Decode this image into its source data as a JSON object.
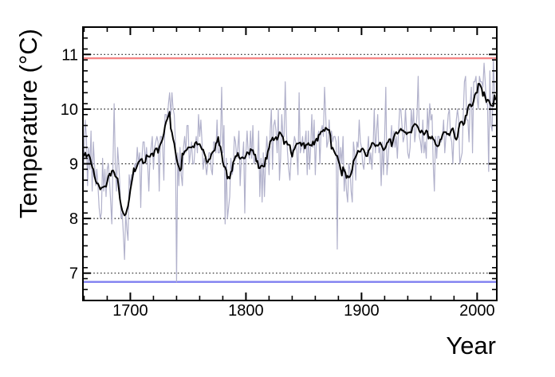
{
  "chart_data": {
    "type": "line",
    "title": "",
    "xlabel": "Year",
    "ylabel": "Temperature (°C)",
    "xlim": [
      1659,
      2017
    ],
    "ylim": [
      6.5,
      11.5
    ],
    "x_major_ticks": [
      1700,
      1800,
      1900,
      2000
    ],
    "x_major_tick_labels": [
      "1700",
      "1800",
      "1900",
      "2000"
    ],
    "x_minor_step": 20,
    "y_major_ticks": [
      7,
      8,
      9,
      10,
      11
    ],
    "y_major_tick_labels": [
      "7",
      "8",
      "9",
      "10",
      "11"
    ],
    "y_minor_step": 0.2,
    "grid": {
      "style": "dotted",
      "orientation": "horizontal",
      "at": [
        7,
        8,
        9,
        10,
        11
      ],
      "color": "#222222"
    },
    "legend": "none",
    "reference_lines": [
      {
        "name": "record-warm-line",
        "value": 10.93,
        "color": "#f58585"
      },
      {
        "name": "record-cold-line",
        "value": 6.84,
        "color": "#7e7ef0"
      }
    ],
    "series": [
      {
        "name": "annual-temperature",
        "color": "#b1b1cb",
        "start_year": 1659,
        "values": [
          8.83,
          9.1,
          9.8,
          9.5,
          8.6,
          9.3,
          8.9,
          9.6,
          8.5,
          9.4,
          9.0,
          8.6,
          8.9,
          8.6,
          8.2,
          8.0,
          8.1,
          9.1,
          8.5,
          8.9,
          8.4,
          8.9,
          9.0,
          8.7,
          8.3,
          7.9,
          9.0,
          10.1,
          9.0,
          8.5,
          9.3,
          9.0,
          8.6,
          8.0,
          8.1,
          7.7,
          7.25,
          8.1,
          7.8,
          7.6,
          8.8,
          8.6,
          8.8,
          8.8,
          8.8,
          9.0,
          8.9,
          9.3,
          9.0,
          9.2,
          8.2,
          9.1,
          9.4,
          9.4,
          9.0,
          9.3,
          9.0,
          8.5,
          9.1,
          9.3,
          9.5,
          8.9,
          9.3,
          9.4,
          9.5,
          9.4,
          8.5,
          9.5,
          9.5,
          9.3,
          8.7,
          9.9,
          9.9,
          9.8,
          10.1,
          10.3,
          9.9,
          10.3,
          10.0,
          9.9,
          9.4,
          6.84,
          9.2,
          8.6,
          9.3,
          8.8,
          8.6,
          9.3,
          9.5,
          9.2,
          9.7,
          9.7,
          9.0,
          9.2,
          9.4,
          9.0,
          9.0,
          9.3,
          9.5,
          9.2,
          9.9,
          9.5,
          9.8,
          9.4,
          8.9,
          9.1,
          9.0,
          8.8,
          9.0,
          9.2,
          9.2,
          8.9,
          8.8,
          9.4,
          9.4,
          9.2,
          9.8,
          9.2,
          9.2,
          9.4,
          10.4,
          9.2,
          9.7,
          7.9,
          9.1,
          8.0,
          8.2,
          8.4,
          9.1,
          8.8,
          8.9,
          9.5,
          9.4,
          9.1,
          9.3,
          9.6,
          8.6,
          9.1,
          9.1,
          9.4,
          8.1,
          9.2,
          9.6,
          9.2,
          9.1,
          9.6,
          9.1,
          9.7,
          9.0,
          9.1,
          9.1,
          9.0,
          9.6,
          8.4,
          9.1,
          8.3,
          9.2,
          8.4,
          9.0,
          9.5,
          9.2,
          8.8,
          9.6,
          10.0,
          8.9,
          9.7,
          9.8,
          9.6,
          9.2,
          10.0,
          8.7,
          9.1,
          9.9,
          9.5,
          9.5,
          10.5,
          9.6,
          9.2,
          8.9,
          8.7,
          9.1,
          9.2,
          9.3,
          9.5,
          9.4,
          9.2,
          8.8,
          10.3,
          9.2,
          9.3,
          9.5,
          9.2,
          9.4,
          9.6,
          8.8,
          9.6,
          8.9,
          9.3,
          9.9,
          9.3,
          9.8,
          8.8,
          9.4,
          9.5,
          9.6,
          9.0,
          9.6,
          9.7,
          9.5,
          10.4,
          9.9,
          9.3,
          9.4,
          9.8,
          9.4,
          9.6,
          9.4,
          9.5,
          9.5,
          9.4,
          7.44,
          9.5,
          8.9,
          9.3,
          9.0,
          9.5,
          8.5,
          8.9,
          8.5,
          8.3,
          9.0,
          8.9,
          8.5,
          8.3,
          9.4,
          9.2,
          8.7,
          9.4,
          9.3,
          9.8,
          9.4,
          9.3,
          9.0,
          8.9,
          9.2,
          9.2,
          9.2,
          9.5,
          9.0,
          9.2,
          8.9,
          9.3,
          10.0,
          9.2,
          9.6,
          9.9,
          9.2,
          9.3,
          8.6,
          9.4,
          8.8,
          9.5,
          10.4,
          8.8,
          9.1,
          9.4,
          9.4,
          9.7,
          9.3,
          9.6,
          9.3,
          9.5,
          9.1,
          9.6,
          10.0,
          10.0,
          9.7,
          9.4,
          9.5,
          10.0,
          9.6,
          9.2,
          9.1,
          9.3,
          10.0,
          9.6,
          10.0,
          9.4,
          9.6,
          9.9,
          10.6,
          9.5,
          9.4,
          9.2,
          9.8,
          9.2,
          9.4,
          9.1,
          10.0,
          9.6,
          10.1,
          9.8,
          9.9,
          9.0,
          8.5,
          9.5,
          9.1,
          9.5,
          9.5,
          9.4,
          9.4,
          9.5,
          9.8,
          9.2,
          9.5,
          9.6,
          9.9,
          10.0,
          9.5,
          9.4,
          9.0,
          9.6,
          9.5,
          9.8,
          10.0,
          9.8,
          9.0,
          9.1,
          9.2,
          9.9,
          10.5,
          10.6,
          9.8,
          9.8,
          9.4,
          10.1,
          10.4,
          9.2,
          10.5,
          10.5,
          10.6,
          10.2,
          10.0,
          10.6,
          10.5,
          10.5,
          10.4,
          10.84,
          10.5,
          10.1,
          10.1,
          8.86,
          10.7,
          9.7,
          9.6,
          10.93,
          10.3,
          10.3
        ]
      },
      {
        "name": "smoothed-temperature",
        "color": "#000000",
        "derivation": "10-year moving average of annual-temperature"
      }
    ],
    "colors": {
      "frame": "#000000",
      "background": "#ffffff",
      "grid": "#222222"
    }
  }
}
